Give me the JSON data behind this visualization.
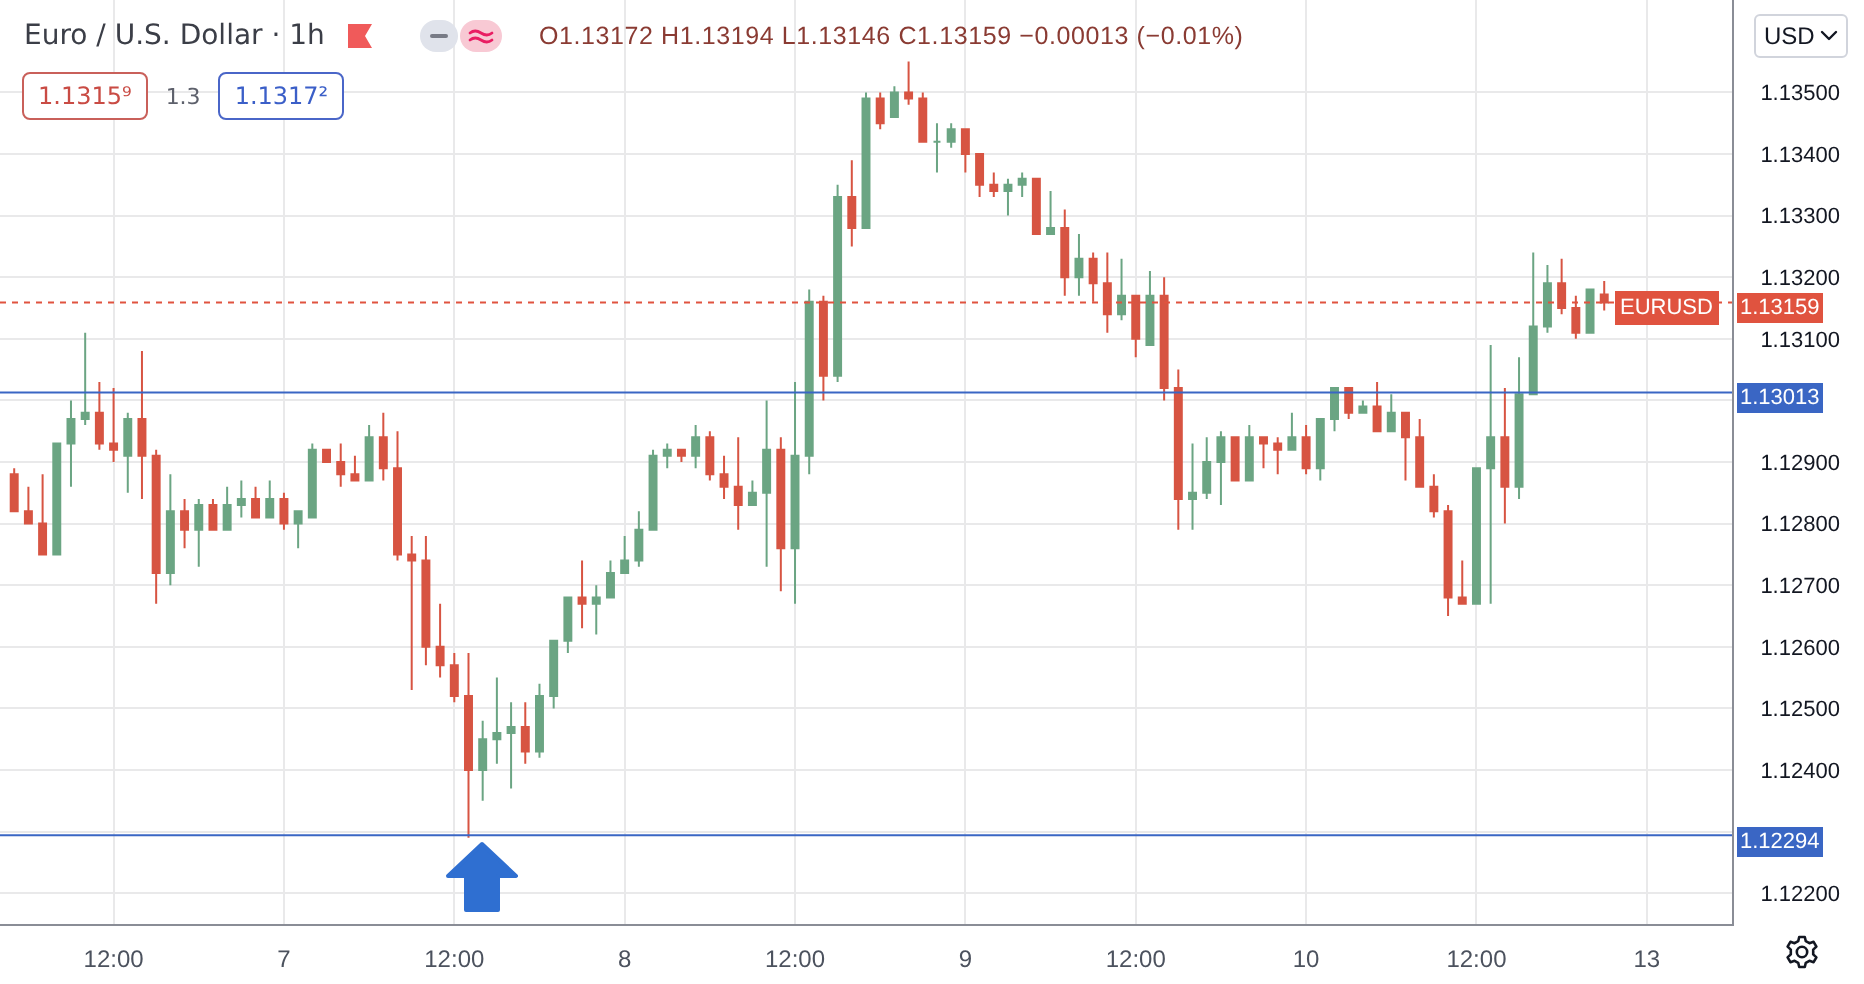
{
  "chart_data": {
    "type": "candlestick",
    "title": "Euro / U.S. Dollar · 1h",
    "categories": [
      null,
      null,
      null,
      null,
      null,
      null,
      null,
      "12:00",
      null,
      null,
      null,
      null,
      null,
      null,
      null,
      null,
      null,
      null,
      null,
      "7",
      null,
      null,
      null,
      null,
      null,
      null,
      null,
      null,
      null,
      null,
      null,
      "12:00",
      null,
      null,
      null,
      null,
      null,
      null,
      null,
      null,
      null,
      null,
      null,
      "8",
      null,
      null,
      null,
      null,
      null,
      null,
      null,
      null,
      null,
      null,
      null,
      "12:00",
      null,
      null,
      null,
      null,
      null,
      null,
      null,
      null,
      null,
      null,
      null,
      "9",
      null,
      null,
      null,
      null,
      null,
      null,
      null,
      null,
      null,
      null,
      null,
      "12:00",
      null,
      null,
      null,
      null,
      null,
      null,
      null,
      null,
      null,
      null,
      null,
      "10",
      null,
      null,
      null,
      null,
      null,
      null,
      null,
      null,
      null,
      null,
      null,
      "12:00",
      null,
      null,
      null,
      null,
      null,
      null,
      null,
      null,
      null,
      null,
      null,
      "13"
    ],
    "ohlc": [
      [
        1.1288,
        1.1289,
        1.1282,
        1.1282
      ],
      [
        1.1282,
        1.1286,
        1.128,
        1.128
      ],
      [
        1.128,
        1.1288,
        1.1275,
        1.1275
      ],
      [
        1.1275,
        1.1293,
        1.1275,
        1.1293
      ],
      [
        1.1293,
        1.13,
        1.1286,
        1.1297
      ],
      [
        1.1297,
        1.1311,
        1.1296,
        1.1298
      ],
      [
        1.1298,
        1.1303,
        1.1292,
        1.1293
      ],
      [
        1.1293,
        1.1302,
        1.129,
        1.1292
      ],
      [
        1.1291,
        1.1298,
        1.1285,
        1.1297
      ],
      [
        1.1297,
        1.1308,
        1.1284,
        1.1291
      ],
      [
        1.1291,
        1.1292,
        1.1267,
        1.1272
      ],
      [
        1.1272,
        1.1288,
        1.127,
        1.1282
      ],
      [
        1.1282,
        1.1284,
        1.1276,
        1.1279
      ],
      [
        1.1279,
        1.1284,
        1.1273,
        1.1283
      ],
      [
        1.1283,
        1.1284,
        1.1279,
        1.1279
      ],
      [
        1.1279,
        1.1286,
        1.1279,
        1.1283
      ],
      [
        1.1283,
        1.1287,
        1.1281,
        1.1284
      ],
      [
        1.1284,
        1.1286,
        1.1281,
        1.1281
      ],
      [
        1.1281,
        1.1287,
        1.1281,
        1.1284
      ],
      [
        1.1284,
        1.1285,
        1.1279,
        1.128
      ],
      [
        1.128,
        1.1282,
        1.1276,
        1.1282
      ],
      [
        1.1281,
        1.1293,
        1.1281,
        1.1292
      ],
      [
        1.1292,
        1.1292,
        1.129,
        1.129
      ],
      [
        1.129,
        1.1293,
        1.1286,
        1.1288
      ],
      [
        1.1288,
        1.1291,
        1.1287,
        1.1287
      ],
      [
        1.1287,
        1.1296,
        1.1287,
        1.1294
      ],
      [
        1.1294,
        1.1298,
        1.1287,
        1.1289
      ],
      [
        1.1289,
        1.1295,
        1.1274,
        1.1275
      ],
      [
        1.1275,
        1.1278,
        1.1253,
        1.1274
      ],
      [
        1.1274,
        1.1278,
        1.1257,
        1.126
      ],
      [
        1.126,
        1.1267,
        1.1255,
        1.1257
      ],
      [
        1.1257,
        1.1259,
        1.1251,
        1.1252
      ],
      [
        1.1252,
        1.1259,
        1.1229,
        1.124
      ],
      [
        1.124,
        1.1248,
        1.1235,
        1.1245
      ],
      [
        1.1245,
        1.1255,
        1.1241,
        1.1246
      ],
      [
        1.1246,
        1.1251,
        1.1237,
        1.1247
      ],
      [
        1.1247,
        1.1251,
        1.1241,
        1.1243
      ],
      [
        1.1243,
        1.1254,
        1.1242,
        1.1252
      ],
      [
        1.1252,
        1.1261,
        1.125,
        1.1261
      ],
      [
        1.1261,
        1.1268,
        1.1259,
        1.1268
      ],
      [
        1.1268,
        1.1274,
        1.1263,
        1.1267
      ],
      [
        1.1267,
        1.127,
        1.1262,
        1.1268
      ],
      [
        1.1268,
        1.1274,
        1.1268,
        1.1272
      ],
      [
        1.1272,
        1.1278,
        1.1272,
        1.1274
      ],
      [
        1.1274,
        1.1282,
        1.1273,
        1.1279
      ],
      [
        1.1279,
        1.1292,
        1.1279,
        1.1291
      ],
      [
        1.1291,
        1.1293,
        1.1289,
        1.1292
      ],
      [
        1.1292,
        1.1292,
        1.129,
        1.1291
      ],
      [
        1.1291,
        1.1296,
        1.1289,
        1.1294
      ],
      [
        1.1294,
        1.1295,
        1.1287,
        1.1288
      ],
      [
        1.1288,
        1.1291,
        1.1284,
        1.1286
      ],
      [
        1.1286,
        1.1294,
        1.1279,
        1.1283
      ],
      [
        1.1283,
        1.1287,
        1.1283,
        1.1285
      ],
      [
        1.1285,
        1.13,
        1.1273,
        1.1292
      ],
      [
        1.1292,
        1.1294,
        1.1269,
        1.1276
      ],
      [
        1.1276,
        1.1303,
        1.1267,
        1.1291
      ],
      [
        1.1291,
        1.1318,
        1.1288,
        1.1316
      ],
      [
        1.1316,
        1.1317,
        1.13,
        1.1304
      ],
      [
        1.1304,
        1.1335,
        1.1303,
        1.1333
      ],
      [
        1.1333,
        1.1339,
        1.1325,
        1.1328
      ],
      [
        1.1328,
        1.135,
        1.1328,
        1.1349
      ],
      [
        1.1349,
        1.135,
        1.1344,
        1.1345
      ],
      [
        1.1346,
        1.1351,
        1.1346,
        1.135
      ],
      [
        1.135,
        1.1355,
        1.1348,
        1.1349
      ],
      [
        1.1349,
        1.135,
        1.1342,
        1.1342
      ],
      [
        1.1342,
        1.1345,
        1.1337,
        1.1342
      ],
      [
        1.1342,
        1.1345,
        1.1341,
        1.1344
      ],
      [
        1.1344,
        1.1344,
        1.1337,
        1.134
      ],
      [
        1.134,
        1.134,
        1.1333,
        1.1335
      ],
      [
        1.1335,
        1.1337,
        1.1333,
        1.1334
      ],
      [
        1.1334,
        1.1336,
        1.133,
        1.1335
      ],
      [
        1.1335,
        1.1337,
        1.1333,
        1.1336
      ],
      [
        1.1336,
        1.1336,
        1.1327,
        1.1327
      ],
      [
        1.1327,
        1.1334,
        1.1327,
        1.1328
      ],
      [
        1.1328,
        1.1331,
        1.1317,
        1.132
      ],
      [
        1.132,
        1.1327,
        1.1317,
        1.1323
      ],
      [
        1.1323,
        1.1324,
        1.1316,
        1.1319
      ],
      [
        1.1319,
        1.1324,
        1.1311,
        1.1314
      ],
      [
        1.1314,
        1.1323,
        1.1313,
        1.1317
      ],
      [
        1.1317,
        1.1317,
        1.1307,
        1.131
      ],
      [
        1.1309,
        1.1321,
        1.1309,
        1.1317
      ],
      [
        1.1317,
        1.132,
        1.13,
        1.1302
      ],
      [
        1.1302,
        1.1305,
        1.1279,
        1.1284
      ],
      [
        1.1284,
        1.1293,
        1.1279,
        1.1285
      ],
      [
        1.1285,
        1.1294,
        1.1284,
        1.129
      ],
      [
        1.129,
        1.1295,
        1.1283,
        1.1294
      ],
      [
        1.1294,
        1.1294,
        1.1287,
        1.1287
      ],
      [
        1.1287,
        1.1296,
        1.1287,
        1.1294
      ],
      [
        1.1294,
        1.1294,
        1.1289,
        1.1293
      ],
      [
        1.1293,
        1.1294,
        1.1288,
        1.1292
      ],
      [
        1.1292,
        1.1298,
        1.1292,
        1.1294
      ],
      [
        1.1294,
        1.1296,
        1.1288,
        1.1289
      ],
      [
        1.1289,
        1.1297,
        1.1287,
        1.1297
      ],
      [
        1.1297,
        1.1302,
        1.1295,
        1.1302
      ],
      [
        1.1302,
        1.1302,
        1.1297,
        1.1298
      ],
      [
        1.1298,
        1.13,
        1.1298,
        1.1299
      ],
      [
        1.1299,
        1.1303,
        1.1295,
        1.1295
      ],
      [
        1.1295,
        1.1301,
        1.1295,
        1.1298
      ],
      [
        1.1298,
        1.1298,
        1.1287,
        1.1294
      ],
      [
        1.1294,
        1.1297,
        1.1286,
        1.1286
      ],
      [
        1.1286,
        1.1288,
        1.1281,
        1.1282
      ],
      [
        1.1282,
        1.1283,
        1.1265,
        1.1268
      ],
      [
        1.1268,
        1.1274,
        1.1267,
        1.1267
      ],
      [
        1.1267,
        1.1289,
        1.1267,
        1.1289
      ],
      [
        1.1289,
        1.1309,
        1.1267,
        1.1294
      ],
      [
        1.1294,
        1.1302,
        1.128,
        1.1286
      ],
      [
        1.1286,
        1.1307,
        1.1284,
        1.1301
      ],
      [
        1.1301,
        1.1324,
        1.1301,
        1.1312
      ],
      [
        1.1312,
        1.1322,
        1.1311,
        1.1319
      ],
      [
        1.1319,
        1.1323,
        1.1314,
        1.1315
      ],
      [
        1.1315,
        1.1317,
        1.131,
        1.1311
      ],
      [
        1.1311,
        1.1318,
        1.1311,
        1.1318
      ],
      [
        1.13172,
        1.13194,
        1.13146,
        1.13159
      ],
      null,
      null,
      null
    ],
    "colors": [
      "#d75442",
      "#d75442",
      "#d75442",
      "#6ba583",
      "#6ba583",
      "#6ba583",
      "#d75442",
      "#d75442",
      "#6ba583",
      "#d75442",
      "#d75442",
      "#6ba583",
      "#d75442",
      "#6ba583",
      "#d75442",
      "#6ba583",
      "#6ba583",
      "#d75442",
      "#6ba583",
      "#d75442",
      "#6ba583",
      "#6ba583",
      "#d75442",
      "#d75442",
      "#d75442",
      "#6ba583",
      "#d75442",
      "#d75442",
      "#d75442",
      "#d75442",
      "#d75442",
      "#d75442",
      "#d75442",
      "#6ba583",
      "#6ba583",
      "#6ba583",
      "#d75442",
      "#6ba583",
      "#6ba583",
      "#6ba583",
      "#d75442",
      "#6ba583",
      "#6ba583",
      "#6ba583",
      "#6ba583",
      "#6ba583",
      "#6ba583",
      "#d75442",
      "#6ba583",
      "#d75442",
      "#d75442",
      "#d75442",
      "#6ba583",
      "#6ba583",
      "#d75442",
      "#6ba583",
      "#6ba583",
      "#d75442",
      "#6ba583",
      "#d75442",
      "#6ba583",
      "#d75442",
      "#6ba583",
      "#d75442",
      "#d75442",
      "#6ba583",
      "#6ba583",
      "#d75442",
      "#d75442",
      "#d75442",
      "#6ba583",
      "#6ba583",
      "#d75442",
      "#6ba583",
      "#d75442",
      "#6ba583",
      "#d75442",
      "#d75442",
      "#6ba583",
      "#d75442",
      "#6ba583",
      "#d75442",
      "#d75442",
      "#6ba583",
      "#6ba583",
      "#6ba583",
      "#d75442",
      "#6ba583",
      "#d75442",
      "#d75442",
      "#6ba583",
      "#d75442",
      "#6ba583",
      "#6ba583",
      "#d75442",
      "#6ba583",
      "#d75442",
      "#6ba583",
      "#d75442",
      "#d75442",
      "#d75442",
      "#d75442",
      "#d75442",
      "#6ba583",
      "#6ba583",
      "#d75442",
      "#6ba583",
      "#6ba583",
      "#6ba583",
      "#d75442",
      "#d75442",
      "#6ba583",
      "#d75442",
      null,
      null,
      null
    ],
    "ylim": [
      1.1215,
      1.1365
    ],
    "yticks": [
      {
        "value": 1.122,
        "label": "1.12200"
      },
      {
        "value": 1.123,
        "label": null
      },
      {
        "value": 1.124,
        "label": "1.12400"
      },
      {
        "value": 1.125,
        "label": "1.12500"
      },
      {
        "value": 1.126,
        "label": "1.12600"
      },
      {
        "value": 1.127,
        "label": "1.12700"
      },
      {
        "value": 1.128,
        "label": "1.12800"
      },
      {
        "value": 1.129,
        "label": "1.12900"
      },
      {
        "value": 1.13,
        "label": null
      },
      {
        "value": 1.131,
        "label": "1.13100"
      },
      {
        "value": 1.132,
        "label": "1.13200"
      },
      {
        "value": 1.133,
        "label": "1.13300"
      },
      {
        "value": 1.134,
        "label": "1.13400"
      },
      {
        "value": 1.135,
        "label": "1.13500"
      }
    ],
    "grid": true,
    "ref_lines": [
      {
        "axis": "y",
        "value": 1.13013,
        "label": "1.13013",
        "color": "#3a66c4"
      },
      {
        "axis": "y",
        "value": 1.12294,
        "label": "1.12294",
        "color": "#3a66c4"
      },
      {
        "axis": "y",
        "value": 1.13159,
        "label": "1.13159",
        "color": "#e0533f",
        "line_style": "dotted"
      }
    ],
    "annotations": [
      "O1.13172 H1.13194 L1.13146 C1.13159 −0.00013 (−0.01%)",
      "1.1315⁹",
      "1.3",
      "1.1317²",
      "USD",
      {
        "text": "EURUSD",
        "y": 1.13159
      }
    ]
  }
}
